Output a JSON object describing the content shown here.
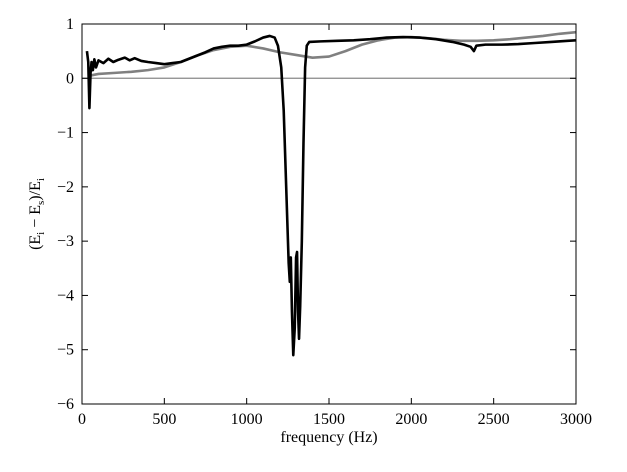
{
  "chart_data": {
    "type": "line",
    "xlabel": "frequency (Hz)",
    "ylabel": "(E_i − E_s)/E_i",
    "ylabel_parts": {
      "open": "(E",
      "sub1": "i",
      "mid": " − E",
      "sub2": "s",
      "close": ")/E",
      "sub3": "i"
    },
    "xlim": [
      0,
      3000
    ],
    "ylim": [
      -6,
      1
    ],
    "xticks": [
      0,
      500,
      1000,
      1500,
      2000,
      2500,
      3000
    ],
    "yticks": [
      -6,
      -5,
      -4,
      -3,
      -2,
      -1,
      0,
      1
    ],
    "xtick_labels": [
      "0",
      "500",
      "1000",
      "1500",
      "2000",
      "2500",
      "3000"
    ],
    "ytick_labels": [
      "−6",
      "−5",
      "−4",
      "−3",
      "−2",
      "−1",
      "0",
      "1"
    ],
    "grid": false,
    "reference_line": {
      "y": 0,
      "color": "#888888"
    },
    "series": [
      {
        "color": "#000000",
        "points": [
          [
            30,
            0.5
          ],
          [
            38,
            0.3
          ],
          [
            45,
            -0.55
          ],
          [
            52,
            0.1
          ],
          [
            58,
            0.3
          ],
          [
            66,
            0.15
          ],
          [
            75,
            0.35
          ],
          [
            85,
            0.2
          ],
          [
            100,
            0.33
          ],
          [
            130,
            0.28
          ],
          [
            160,
            0.36
          ],
          [
            190,
            0.3
          ],
          [
            220,
            0.34
          ],
          [
            260,
            0.38
          ],
          [
            290,
            0.33
          ],
          [
            320,
            0.37
          ],
          [
            360,
            0.32
          ],
          [
            400,
            0.3
          ],
          [
            450,
            0.28
          ],
          [
            500,
            0.26
          ],
          [
            550,
            0.28
          ],
          [
            600,
            0.3
          ],
          [
            650,
            0.36
          ],
          [
            700,
            0.42
          ],
          [
            750,
            0.48
          ],
          [
            800,
            0.55
          ],
          [
            850,
            0.58
          ],
          [
            900,
            0.6
          ],
          [
            950,
            0.6
          ],
          [
            1000,
            0.62
          ],
          [
            1050,
            0.68
          ],
          [
            1100,
            0.75
          ],
          [
            1140,
            0.78
          ],
          [
            1170,
            0.75
          ],
          [
            1190,
            0.6
          ],
          [
            1210,
            0.2
          ],
          [
            1225,
            -0.6
          ],
          [
            1240,
            -2.0
          ],
          [
            1255,
            -3.4
          ],
          [
            1262,
            -3.75
          ],
          [
            1268,
            -3.3
          ],
          [
            1275,
            -4.3
          ],
          [
            1283,
            -5.1
          ],
          [
            1292,
            -4.6
          ],
          [
            1300,
            -3.3
          ],
          [
            1306,
            -3.2
          ],
          [
            1312,
            -4.3
          ],
          [
            1318,
            -4.8
          ],
          [
            1325,
            -4.2
          ],
          [
            1335,
            -3.0
          ],
          [
            1345,
            -1.2
          ],
          [
            1355,
            0.2
          ],
          [
            1365,
            0.6
          ],
          [
            1380,
            0.67
          ],
          [
            1450,
            0.68
          ],
          [
            1550,
            0.69
          ],
          [
            1650,
            0.7
          ],
          [
            1750,
            0.72
          ],
          [
            1850,
            0.75
          ],
          [
            1950,
            0.76
          ],
          [
            2050,
            0.75
          ],
          [
            2150,
            0.72
          ],
          [
            2250,
            0.67
          ],
          [
            2320,
            0.62
          ],
          [
            2360,
            0.58
          ],
          [
            2380,
            0.5
          ],
          [
            2395,
            0.6
          ],
          [
            2450,
            0.62
          ],
          [
            2550,
            0.62
          ],
          [
            2650,
            0.63
          ],
          [
            2750,
            0.65
          ],
          [
            2850,
            0.67
          ],
          [
            2950,
            0.69
          ],
          [
            3000,
            0.7
          ]
        ]
      },
      {
        "color": "#808080",
        "points": [
          [
            50,
            0.05
          ],
          [
            100,
            0.08
          ],
          [
            200,
            0.1
          ],
          [
            300,
            0.12
          ],
          [
            400,
            0.15
          ],
          [
            500,
            0.2
          ],
          [
            600,
            0.3
          ],
          [
            700,
            0.42
          ],
          [
            800,
            0.52
          ],
          [
            900,
            0.58
          ],
          [
            1000,
            0.6
          ],
          [
            1100,
            0.55
          ],
          [
            1200,
            0.48
          ],
          [
            1300,
            0.43
          ],
          [
            1400,
            0.38
          ],
          [
            1500,
            0.4
          ],
          [
            1600,
            0.5
          ],
          [
            1700,
            0.62
          ],
          [
            1800,
            0.7
          ],
          [
            1900,
            0.75
          ],
          [
            2000,
            0.76
          ],
          [
            2100,
            0.74
          ],
          [
            2200,
            0.71
          ],
          [
            2300,
            0.69
          ],
          [
            2400,
            0.69
          ],
          [
            2500,
            0.7
          ],
          [
            2600,
            0.72
          ],
          [
            2700,
            0.75
          ],
          [
            2800,
            0.78
          ],
          [
            2900,
            0.82
          ],
          [
            3000,
            0.85
          ]
        ]
      }
    ]
  }
}
